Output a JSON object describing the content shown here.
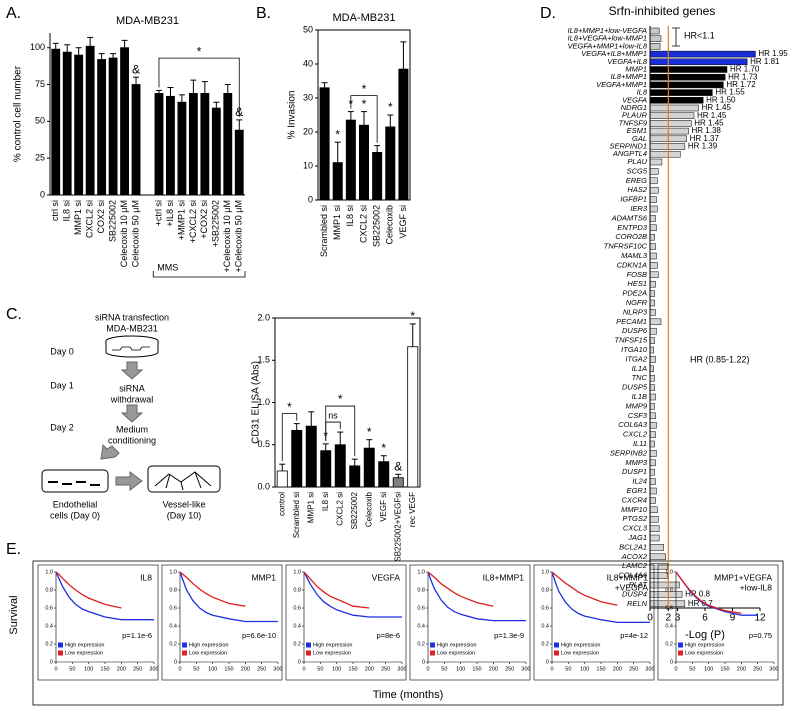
{
  "panel_labels": [
    "A.",
    "B.",
    "C.",
    "D.",
    "E."
  ],
  "diagram": {
    "title": [
      "siRNA transfection",
      "MDA-MB231"
    ],
    "days": [
      "Day 0",
      "Day 1",
      "Day 2"
    ],
    "steps": [
      [
        "siRNA",
        "withdrawal"
      ],
      [
        "Medium",
        "conditioning"
      ]
    ],
    "cells": [
      [
        "Endothelial",
        "cells (Day 0)"
      ],
      [
        "Vessel-like",
        "(Day 10)"
      ]
    ]
  },
  "panel_e": {
    "y_label": "Survival",
    "x_label": "Time (months)"
  },
  "chart_data": [
    {
      "type": "bar",
      "title": "MDA-MB231",
      "y_label": "% control cell number",
      "categories": [
        "ctrl si",
        "IL8 si",
        "MMP1 si",
        "CXCL2 si",
        "COX2 si",
        "SB225002",
        "Celecoxib 10 μM",
        "Celecoxib 50 μM",
        null,
        "+ctrl si",
        "+IL8 si",
        "+MMP1 si",
        "+CXCL2 si",
        "+COX2 si",
        "+SB225002",
        "+Celecoxib 10 μM",
        "+Celecoxib 50 μM"
      ],
      "values": [
        99,
        97,
        95,
        101,
        92,
        93,
        100,
        75,
        null,
        69,
        67,
        63,
        69,
        69,
        59,
        69,
        44
      ],
      "errors": [
        4,
        5,
        5,
        6,
        4,
        3,
        5,
        5,
        null,
        2,
        6,
        5,
        9,
        8,
        4,
        6,
        7
      ],
      "color": "#000000",
      "ylim": [
        0,
        110
      ],
      "yticks": [
        0,
        25,
        50,
        75,
        100
      ],
      "annotations": [
        "&",
        "*",
        "&"
      ],
      "group_label": "MMS"
    },
    {
      "type": "bar",
      "title": "MDA-MB231",
      "y_label": "% Invasion",
      "categories": [
        "Scrambled si",
        "MMP1 si",
        "IL8 si",
        "CXCL2 si",
        "SB225002",
        "Celecoxib",
        "VEGF si"
      ],
      "values": [
        33,
        11,
        23.5,
        22,
        14,
        21.5,
        38.5
      ],
      "errors": [
        1.5,
        6,
        2.5,
        4,
        2,
        3.5,
        8
      ],
      "color": "#000000",
      "ylim": [
        0,
        50
      ],
      "yticks": [
        0,
        10,
        20,
        30,
        40,
        50
      ],
      "annotations": [
        "*",
        "*",
        "*",
        "*",
        "*"
      ]
    },
    {
      "type": "bar",
      "y_label": "CD31 ELISA (Abs)",
      "categories": [
        "control",
        "Scrambled si",
        "MMP1 si",
        "IL8 si",
        "CXCL2 si",
        "SB225002",
        "Celecoxib",
        "VEGF si",
        "SB225002+VEGFsi",
        "rec VEGF"
      ],
      "values": [
        0.19,
        0.67,
        0.72,
        0.43,
        0.5,
        0.25,
        0.46,
        0.3,
        0.11,
        1.66
      ],
      "errors": [
        0.08,
        0.08,
        0.17,
        0.08,
        0.15,
        0.08,
        0.1,
        0.07,
        0.04,
        0.27
      ],
      "colors": [
        "#ffffff",
        "#000000",
        "#000000",
        "#000000",
        "#000000",
        "#000000",
        "#000000",
        "#000000",
        "#808080",
        "#ffffff"
      ],
      "ylim": [
        0,
        2
      ],
      "yticks": [
        {
          "value": 0,
          "label": "0.0"
        },
        0.5,
        {
          "value": 1,
          "label": "1.0"
        },
        1.5,
        {
          "value": 2,
          "label": "2.0"
        }
      ],
      "annotations": [
        "*",
        "*",
        "ns",
        "*",
        "*",
        "*",
        "&",
        "*"
      ]
    },
    {
      "type": "barh",
      "title": "Srfn-inhibited genes",
      "x_label": "-Log (P)",
      "categories": [
        "IL8+MMP1+low-VEGFA",
        "IL8+VEGFA+low-MMP1",
        "VEGFA+MMP1+low-IL8",
        "VEGFA+IL8+MMP1",
        "VEGFA+IL8",
        "MMP1",
        "IL8+MMP1",
        "VEGFA+MMP1",
        "IL8",
        "VEGFA",
        "NDRG1",
        "PLAUR",
        "TNFSF9",
        "ESM1",
        "GAL",
        "SERPIND1",
        "ANGPTL4",
        "PLAU",
        "SCG5",
        "EREG",
        "HAS2",
        "IGFBP1",
        "IER3",
        "ADAMTS6",
        "ENTPD3",
        "CORO2B",
        "TNFRSF10C",
        "MAML3",
        "CDKN1A",
        "FOSB",
        "HES1",
        "PDE2A",
        "NGFR",
        "NLRP3",
        "PECAM1",
        "DUSP6",
        "TNFSF15",
        "ITGA10",
        "ITGA2",
        "IL1A",
        "TNC",
        "DUSP5",
        "IL1B",
        "MMP9",
        "CSF3",
        "COL6A3",
        "CXCL2",
        "IL11",
        "SERPINB2",
        "MMP3",
        "DUSP1",
        "IL24",
        "EGR1",
        "CXCR4",
        "MMP10",
        "PTGS2",
        "CXCL3",
        "JAG1",
        "BCL2A1",
        "ACOX2",
        "LAMC2",
        "COL4A6",
        "PLAT",
        "DUSP4",
        "RELN"
      ],
      "values": [
        1.0,
        1.2,
        1.1,
        11.5,
        10.6,
        8.4,
        8.2,
        8.0,
        6.8,
        5.8,
        5.3,
        4.8,
        4.5,
        4.2,
        4.0,
        3.8,
        3.3,
        1.3,
        0.9,
        0.8,
        0.9,
        0.7,
        0.8,
        0.6,
        0.7,
        0.5,
        0.6,
        0.7,
        0.8,
        0.9,
        0.6,
        0.5,
        0.5,
        0.6,
        1.2,
        0.7,
        0.5,
        0.4,
        0.6,
        0.4,
        0.5,
        0.5,
        0.6,
        0.5,
        0.6,
        0.7,
        0.6,
        0.5,
        0.7,
        0.6,
        0.5,
        0.6,
        0.7,
        0.6,
        0.8,
        0.9,
        1.0,
        1.0,
        1.5,
        1.7,
        1.9,
        1.9,
        3.2,
        3.5,
        3.8
      ],
      "colors": [
        "#c8c8c8",
        "#c8c8c8",
        "#c8c8c8",
        "#1a2ed8",
        "#1a2ed8",
        "#000000",
        "#000000",
        "#000000",
        "#000000",
        "#000000",
        "#d4d4d4",
        "#d4d4d4",
        "#d4d4d4",
        "#d4d4d4",
        "#d4d4d4",
        "#d4d4d4",
        "#d4d4d4",
        "#d4d4d4",
        "#d4d4d4",
        "#d4d4d4",
        "#d4d4d4",
        "#d4d4d4",
        "#d4d4d4",
        "#d4d4d4",
        "#d4d4d4",
        "#d4d4d4",
        "#d4d4d4",
        "#d4d4d4",
        "#d4d4d4",
        "#d4d4d4",
        "#d4d4d4",
        "#d4d4d4",
        "#d4d4d4",
        "#d4d4d4",
        "#d4d4d4",
        "#d4d4d4",
        "#d4d4d4",
        "#d4d4d4",
        "#d4d4d4",
        "#d4d4d4",
        "#d4d4d4",
        "#d4d4d4",
        "#d4d4d4",
        "#d4d4d4",
        "#d4d4d4",
        "#d4d4d4",
        "#d4d4d4",
        "#d4d4d4",
        "#d4d4d4",
        "#d4d4d4",
        "#d4d4d4",
        "#d4d4d4",
        "#d4d4d4",
        "#d4d4d4",
        "#d4d4d4",
        "#d4d4d4",
        "#d4d4d4",
        "#d4d4d4",
        "#d4d4d4",
        "#d4d4d4",
        "#d4d4d4",
        "#d4d4d4",
        "#d4d4d4",
        "#d4d4d4",
        "#d4d4d4"
      ],
      "hr_labels": [
        null,
        null,
        null,
        "HR 1.95",
        "HR 1.81",
        "HR 1.70",
        "HR 1.73",
        "HR 1.72",
        "HR 1.55",
        "HR 1.50",
        "HR 1.45",
        "HR 1.45",
        "HR 1.45",
        "HR 1.38",
        "HR 1.37",
        "HR 1.39",
        null,
        null,
        null,
        null,
        null,
        null,
        null,
        null,
        null,
        null,
        null,
        null,
        null,
        null,
        null,
        null,
        null,
        null,
        null,
        null,
        null,
        null,
        null,
        null,
        null,
        null,
        null,
        null,
        null,
        null,
        null,
        null,
        null,
        null,
        null,
        null,
        null,
        null,
        null,
        null,
        null,
        null,
        null,
        null,
        null,
        null,
        null,
        "HR 0.8",
        "HR 0.7"
      ],
      "annotations": [
        "HR<1.1",
        "HR (0.85-1.22)"
      ],
      "xlim": [
        0,
        12
      ],
      "xticks": [
        0,
        2,
        3,
        6,
        9,
        12
      ],
      "reference_line": 2,
      "reference_color": "#e07b2a"
    },
    {
      "type": "line",
      "title": [
        "IL8"
      ],
      "p_value": "p=1.1e-6",
      "x": [
        0,
        10,
        20,
        40,
        60,
        80,
        100,
        150,
        200,
        250,
        300
      ],
      "series": [
        {
          "name": "High expression",
          "color": "#1f2fe0",
          "values": [
            1,
            0.92,
            0.84,
            0.72,
            0.64,
            0.59,
            0.56,
            0.5,
            0.47,
            0.47,
            0.47
          ]
        },
        {
          "name": "Low expression",
          "color": "#e01f1f",
          "values": [
            1,
            0.97,
            0.93,
            0.86,
            0.8,
            0.75,
            0.71,
            0.64,
            0.6,
            null,
            null
          ]
        }
      ],
      "xlim": [
        0,
        300
      ],
      "xticks": [
        0,
        50,
        100,
        150,
        200,
        250,
        300
      ],
      "ylim": [
        0,
        1
      ],
      "yticks": [
        0,
        0.2,
        0.4,
        0.6,
        0.8,
        {
          "value": 1,
          "label": "1.0"
        }
      ]
    },
    {
      "type": "line",
      "title": [
        "MMP1"
      ],
      "p_value": "p=6.6e-10",
      "x": [
        0,
        10,
        20,
        40,
        60,
        80,
        100,
        150,
        200,
        250,
        300
      ],
      "series": [
        {
          "name": "High expression",
          "color": "#1f2fe0",
          "values": [
            1,
            0.9,
            0.8,
            0.68,
            0.6,
            0.55,
            0.52,
            0.48,
            0.45,
            0.45,
            0.45
          ]
        },
        {
          "name": "Low expression",
          "color": "#e01f1f",
          "values": [
            1,
            0.97,
            0.94,
            0.87,
            0.81,
            0.76,
            0.72,
            0.65,
            0.62,
            null,
            null
          ]
        }
      ],
      "xlim": [
        0,
        300
      ],
      "xticks": [
        0,
        50,
        100,
        150,
        200,
        250,
        300
      ],
      "ylim": [
        0,
        1
      ],
      "yticks": [
        0,
        0.2,
        0.4,
        0.6,
        0.8,
        {
          "value": 1,
          "label": "1.0"
        }
      ]
    },
    {
      "type": "line",
      "title": [
        "VEGFA"
      ],
      "p_value": "p=8e-6",
      "x": [
        0,
        10,
        20,
        40,
        60,
        80,
        100,
        150,
        200,
        250,
        300
      ],
      "series": [
        {
          "name": "High expression",
          "color": "#1f2fe0",
          "values": [
            1,
            0.93,
            0.86,
            0.75,
            0.67,
            0.62,
            0.58,
            0.52,
            0.5,
            0.5,
            0.5
          ]
        },
        {
          "name": "Low expression",
          "color": "#e01f1f",
          "values": [
            1,
            0.96,
            0.92,
            0.84,
            0.78,
            0.73,
            0.7,
            0.62,
            0.6,
            null,
            null
          ]
        }
      ],
      "xlim": [
        0,
        300
      ],
      "xticks": [
        0,
        50,
        100,
        150,
        200,
        250,
        300
      ],
      "ylim": [
        0,
        1
      ],
      "yticks": [
        0,
        0.2,
        0.4,
        0.6,
        0.8,
        {
          "value": 1,
          "label": "1.0"
        }
      ]
    },
    {
      "type": "line",
      "title": [
        "IL8+MMP1"
      ],
      "p_value": "p=1.3e-9",
      "x": [
        0,
        10,
        20,
        40,
        60,
        80,
        100,
        150,
        200,
        250,
        300
      ],
      "series": [
        {
          "name": "High expression",
          "color": "#1f2fe0",
          "values": [
            1,
            0.9,
            0.81,
            0.69,
            0.61,
            0.56,
            0.53,
            0.48,
            0.46,
            0.46,
            0.46
          ]
        },
        {
          "name": "Low expression",
          "color": "#e01f1f",
          "values": [
            1,
            0.97,
            0.94,
            0.87,
            0.82,
            0.77,
            0.73,
            0.66,
            0.62,
            null,
            null
          ]
        }
      ],
      "xlim": [
        0,
        300
      ],
      "xticks": [
        0,
        50,
        100,
        150,
        200,
        250,
        300
      ],
      "ylim": [
        0,
        1
      ],
      "yticks": [
        0,
        0.2,
        0.4,
        0.6,
        0.8,
        {
          "value": 1,
          "label": "1.0"
        }
      ]
    },
    {
      "type": "line",
      "title": [
        "IL8+MMP1",
        "+VEGFA"
      ],
      "p_value": "p=4e-12",
      "x": [
        0,
        10,
        20,
        40,
        60,
        80,
        100,
        150,
        200,
        250,
        300
      ],
      "series": [
        {
          "name": "High expression",
          "color": "#1f2fe0",
          "values": [
            1,
            0.89,
            0.79,
            0.67,
            0.59,
            0.54,
            0.51,
            0.47,
            0.44,
            0.44,
            0.44
          ]
        },
        {
          "name": "Low expression",
          "color": "#e01f1f",
          "values": [
            1,
            0.97,
            0.94,
            0.88,
            0.83,
            0.78,
            0.74,
            0.67,
            0.63,
            null,
            null
          ]
        }
      ],
      "xlim": [
        0,
        300
      ],
      "xticks": [
        0,
        50,
        100,
        150,
        200,
        250,
        300
      ],
      "ylim": [
        0,
        1
      ],
      "yticks": [
        0,
        0.2,
        0.4,
        0.6,
        0.8,
        {
          "value": 1,
          "label": "1.0"
        }
      ]
    },
    {
      "type": "line",
      "title": [
        "MMP1+VEGFA",
        "+low-IL8"
      ],
      "p_value": "p=0.75",
      "x": [
        0,
        10,
        20,
        40,
        60,
        80,
        100,
        150,
        200,
        250,
        300
      ],
      "series": [
        {
          "name": "High expression",
          "color": "#1f2fe0",
          "values": [
            1,
            0.95,
            0.9,
            0.8,
            0.72,
            0.66,
            0.62,
            0.56,
            0.52,
            0.52,
            null
          ]
        },
        {
          "name": "Low expression",
          "color": "#e01f1f",
          "values": [
            1,
            0.95,
            0.9,
            0.81,
            0.73,
            0.67,
            0.63,
            0.57,
            0.54,
            null,
            null
          ]
        }
      ],
      "xlim": [
        0,
        300
      ],
      "xticks": [
        0,
        50,
        100,
        150,
        200,
        250,
        300
      ],
      "ylim": [
        0,
        1
      ],
      "yticks": [
        0,
        0.2,
        0.4,
        0.6,
        0.8,
        {
          "value": 1,
          "label": "1.0"
        }
      ]
    }
  ]
}
